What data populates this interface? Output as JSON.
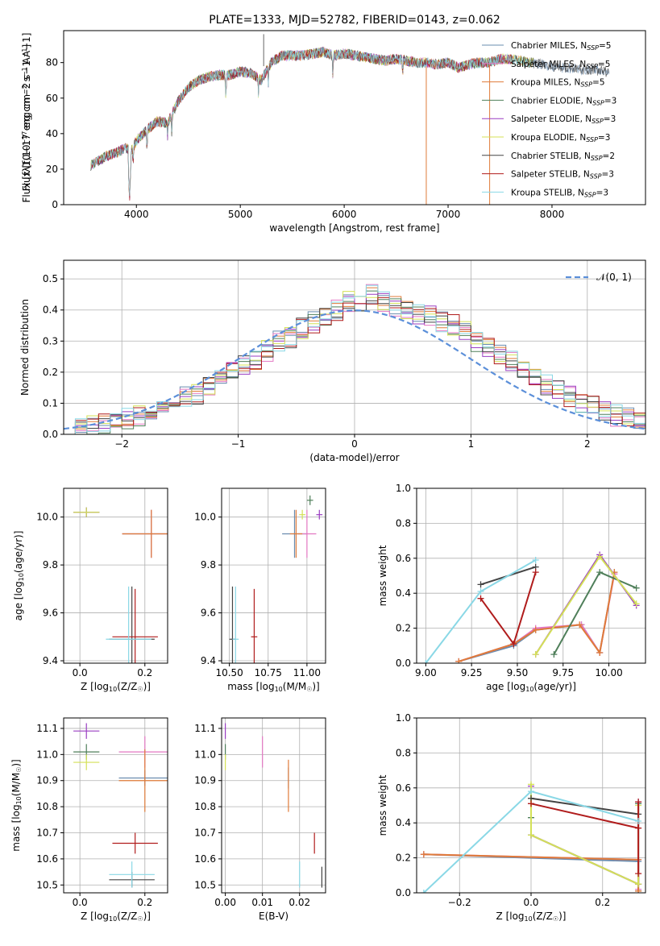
{
  "title": "PLATE=1333, MJD=52782, FIBERID=0143, z=0.062",
  "colors": [
    "#6a8caf",
    "#e377c2",
    "#e07b39",
    "#4f7f5a",
    "#9a3ec2",
    "#d4e157",
    "#444444",
    "#b01c1c",
    "#8ad8e6"
  ],
  "legend": [
    {
      "pre": "Chabrier MILES, N",
      "sub": "SSP",
      "post": "=5"
    },
    {
      "pre": "Salpeter MILES, N",
      "sub": "SSP",
      "post": "=5"
    },
    {
      "pre": "Kroupa MILES, N",
      "sub": "SSP",
      "post": "=5"
    },
    {
      "pre": "Chabrier ELODIE, N",
      "sub": "SSP",
      "post": "=3"
    },
    {
      "pre": "Salpeter ELODIE, N",
      "sub": "SSP",
      "post": "=3"
    },
    {
      "pre": "Kroupa ELODIE, N",
      "sub": "SSP",
      "post": "=3"
    },
    {
      "pre": "Chabrier STELIB, N",
      "sub": "SSP",
      "post": "=2"
    },
    {
      "pre": "Salpeter STELIB, N",
      "sub": "SSP",
      "post": "=3"
    },
    {
      "pre": "Kroupa STELIB, N",
      "sub": "SSP",
      "post": "=3"
    }
  ],
  "chart_data": [
    {
      "id": "spectrum",
      "type": "line",
      "xlabel": "wavelength [Angstrom, rest frame]",
      "ylabel_parts": [
        "Flux [f",
        "λ",
        "10",
        "−17",
        " erg cm",
        "−2",
        " s",
        "−1",
        " A",
        "−1",
        "]"
      ],
      "xlim": [
        3300,
        8900
      ],
      "ylim": [
        0,
        98
      ],
      "xticks": [
        4000,
        5000,
        6000,
        7000,
        8000
      ],
      "yticks": [
        0,
        20,
        40,
        60,
        80
      ],
      "continuum": [
        [
          3560,
          22
        ],
        [
          3700,
          27
        ],
        [
          3800,
          29
        ],
        [
          3900,
          32
        ],
        [
          3950,
          30
        ],
        [
          4000,
          36
        ],
        [
          4100,
          42
        ],
        [
          4200,
          47
        ],
        [
          4300,
          46
        ],
        [
          4400,
          58
        ],
        [
          4500,
          66
        ],
        [
          4600,
          70
        ],
        [
          4700,
          72
        ],
        [
          4800,
          73
        ],
        [
          4900,
          73
        ],
        [
          5000,
          75
        ],
        [
          5100,
          74
        ],
        [
          5200,
          70
        ],
        [
          5300,
          80
        ],
        [
          5400,
          84
        ],
        [
          5500,
          84
        ],
        [
          5600,
          84
        ],
        [
          5700,
          85
        ],
        [
          5800,
          86
        ],
        [
          5900,
          84
        ],
        [
          6000,
          85
        ],
        [
          6100,
          84
        ],
        [
          6200,
          83
        ],
        [
          6300,
          82
        ],
        [
          6400,
          81
        ],
        [
          6500,
          82
        ],
        [
          6600,
          81
        ],
        [
          6700,
          80
        ],
        [
          6800,
          80
        ],
        [
          6900,
          79
        ],
        [
          7000,
          80
        ],
        [
          7100,
          77
        ],
        [
          7200,
          79
        ],
        [
          7300,
          80
        ],
        [
          7400,
          80
        ],
        [
          7500,
          82
        ],
        [
          7600,
          82
        ],
        [
          7700,
          81
        ],
        [
          7800,
          80
        ],
        [
          7900,
          79
        ],
        [
          8000,
          78
        ],
        [
          8100,
          77
        ],
        [
          8200,
          77
        ],
        [
          8300,
          76
        ],
        [
          8400,
          76
        ],
        [
          8500,
          75
        ],
        [
          8550,
          74
        ]
      ],
      "absorption": [
        [
          3934,
          0
        ],
        [
          3968,
          20
        ],
        [
          4102,
          28
        ],
        [
          4300,
          36
        ],
        [
          4340,
          38
        ],
        [
          4861,
          58
        ],
        [
          5175,
          60
        ],
        [
          5270,
          66
        ],
        [
          5890,
          70
        ],
        [
          6563,
          70
        ]
      ],
      "spikes": [
        [
          5225,
          96
        ],
        [
          6790,
          0
        ],
        [
          7400,
          0
        ]
      ],
      "model_x_max": 7420
    },
    {
      "id": "residuals",
      "type": "histogram",
      "xlabel": "(data-model)/error",
      "ylabel": "Normed distribution",
      "xlim": [
        -2.5,
        2.5
      ],
      "ylim": [
        0,
        0.56
      ],
      "xticks": [
        -2,
        -1,
        0,
        1,
        2
      ],
      "yticks": [
        0.0,
        0.1,
        0.2,
        0.3,
        0.4,
        0.5
      ],
      "bin_width": 0.1,
      "base_values": [
        0.03,
        0.04,
        0.03,
        0.035,
        0.04,
        0.05,
        0.06,
        0.07,
        0.09,
        0.1,
        0.12,
        0.13,
        0.16,
        0.17,
        0.2,
        0.22,
        0.24,
        0.27,
        0.3,
        0.31,
        0.34,
        0.36,
        0.38,
        0.4,
        0.43,
        0.42,
        0.45,
        0.43,
        0.41,
        0.4,
        0.39,
        0.38,
        0.36,
        0.35,
        0.33,
        0.3,
        0.28,
        0.26,
        0.24,
        0.21,
        0.19,
        0.16,
        0.14,
        0.12,
        0.1,
        0.09,
        0.08,
        0.06,
        0.05,
        0.04
      ],
      "gaussian_label": "𝒩(0, 1)"
    },
    {
      "id": "age_vs_z",
      "type": "errorbar",
      "xlabel_parts": [
        "Z [log",
        "10",
        "(Z/Z",
        "☉",
        ")]"
      ],
      "ylabel_parts": [
        "age  [log",
        "10",
        "(age/yr)]"
      ],
      "xlim": [
        -0.05,
        0.27
      ],
      "ylim": [
        9.39,
        10.12
      ],
      "xticks": [
        0.0,
        0.2
      ],
      "yticks": [
        9.4,
        9.6,
        9.8,
        10.0
      ],
      "points": [
        [
          0.22,
          9.93,
          0.09,
          0.1
        ],
        [
          0.22,
          9.93,
          0.09,
          0.1
        ],
        [
          0.22,
          9.93,
          0.09,
          0.1
        ],
        [
          0.02,
          10.02,
          0.04,
          0.02
        ],
        [
          0.02,
          10.02,
          0.04,
          0.02
        ],
        [
          0.02,
          10.02,
          0.04,
          0.02
        ],
        [
          0.16,
          9.49,
          0.07,
          0.22
        ],
        [
          0.17,
          9.5,
          0.07,
          0.2
        ],
        [
          0.15,
          9.49,
          0.07,
          0.22
        ]
      ]
    },
    {
      "id": "age_vs_mass",
      "type": "errorbar",
      "xlabel_parts": [
        "mass [log",
        "10",
        "(M/M",
        "☉",
        ")]"
      ],
      "ylabel_parts": [],
      "xlim": [
        10.45,
        11.12
      ],
      "ylim": [
        9.39,
        10.12
      ],
      "xticks": [
        10.5,
        10.75,
        11.0
      ],
      "yticks": [
        9.4,
        9.6,
        9.8,
        10.0
      ],
      "points": [
        [
          10.92,
          9.93,
          0.08,
          0.1
        ],
        [
          11.0,
          9.93,
          0.06,
          0.1
        ],
        [
          10.93,
          9.93,
          0.04,
          0.1
        ],
        [
          11.02,
          10.07,
          0.02,
          0.02
        ],
        [
          11.08,
          10.01,
          0.02,
          0.02
        ],
        [
          10.97,
          10.01,
          0.02,
          0.02
        ],
        [
          10.52,
          9.49,
          0.02,
          0.22
        ],
        [
          10.66,
          9.5,
          0.02,
          0.2
        ],
        [
          10.54,
          9.49,
          0.02,
          0.22
        ]
      ]
    },
    {
      "id": "weight_vs_age",
      "type": "line",
      "xlabel_parts": [
        "age  [log",
        "10",
        "(age/yr)]"
      ],
      "ylabel": "mass weight",
      "xlim": [
        8.95,
        10.2
      ],
      "ylim": [
        0,
        1.0
      ],
      "xticks": [
        9.0,
        9.25,
        9.5,
        9.75,
        10.0
      ],
      "yticks": [
        0.0,
        0.2,
        0.4,
        0.6,
        0.8,
        1.0
      ],
      "series": [
        [
          [
            9.18,
            0.01
          ],
          [
            9.48,
            0.1
          ],
          [
            9.6,
            0.19
          ],
          [
            9.85,
            0.22
          ],
          [
            9.95,
            0.06
          ],
          [
            10.03,
            0.52
          ]
        ],
        [
          [
            9.18,
            0.01
          ],
          [
            9.48,
            0.11
          ],
          [
            9.6,
            0.2
          ],
          [
            9.85,
            0.22
          ],
          [
            9.95,
            0.06
          ],
          [
            10.03,
            0.51
          ]
        ],
        [
          [
            9.18,
            0.01
          ],
          [
            9.48,
            0.11
          ],
          [
            9.6,
            0.19
          ],
          [
            9.84,
            0.22
          ],
          [
            9.95,
            0.06
          ],
          [
            10.03,
            0.52
          ]
        ],
        [
          [
            9.7,
            0.05
          ],
          [
            9.95,
            0.52
          ],
          [
            10.15,
            0.43
          ]
        ],
        [
          [
            9.6,
            0.05
          ],
          [
            9.95,
            0.62
          ],
          [
            10.15,
            0.33
          ]
        ],
        [
          [
            9.6,
            0.05
          ],
          [
            9.95,
            0.61
          ],
          [
            10.15,
            0.34
          ]
        ],
        [
          [
            9.3,
            0.45
          ],
          [
            9.6,
            0.55
          ]
        ],
        [
          [
            9.3,
            0.37
          ],
          [
            9.48,
            0.11
          ],
          [
            9.6,
            0.52
          ]
        ],
        [
          [
            9.0,
            0.0
          ],
          [
            9.3,
            0.41
          ],
          [
            9.6,
            0.59
          ]
        ]
      ]
    },
    {
      "id": "mass_vs_z",
      "type": "errorbar",
      "xlabel_parts": [
        "Z [log",
        "10",
        "(Z/Z",
        "☉",
        ")]"
      ],
      "ylabel_parts": [
        "mass [log",
        "10",
        "(M/M",
        "☉",
        ")]"
      ],
      "xlim": [
        -0.05,
        0.27
      ],
      "ylim": [
        10.47,
        11.14
      ],
      "xticks": [
        0.0,
        0.2
      ],
      "yticks": [
        10.5,
        10.6,
        10.7,
        10.8,
        10.9,
        11.0,
        11.1
      ],
      "points": [
        [
          0.2,
          10.91,
          0.08,
          0.03
        ],
        [
          0.2,
          11.01,
          0.08,
          0.06
        ],
        [
          0.2,
          10.9,
          0.08,
          0.12
        ],
        [
          0.02,
          11.01,
          0.04,
          0.03
        ],
        [
          0.02,
          11.09,
          0.04,
          0.03
        ],
        [
          0.02,
          10.97,
          0.04,
          0.03
        ],
        [
          0.16,
          10.52,
          0.07,
          0.03
        ],
        [
          0.17,
          10.66,
          0.07,
          0.04
        ],
        [
          0.16,
          10.54,
          0.07,
          0.05
        ]
      ]
    },
    {
      "id": "mass_vs_ebv",
      "type": "errorbar",
      "xlabel": "E(B-V)",
      "ylabel_parts": [],
      "xlim": [
        -0.001,
        0.027
      ],
      "ylim": [
        10.47,
        11.14
      ],
      "xticks": [
        0.0,
        0.01,
        0.02
      ],
      "yticks": [
        10.5,
        10.6,
        10.7,
        10.8,
        10.9,
        11.0,
        11.1
      ],
      "points": [
        [
          0.017,
          10.91,
          0,
          0.04
        ],
        [
          0.01,
          11.01,
          0,
          0.06
        ],
        [
          0.017,
          10.88,
          0,
          0.1
        ],
        [
          0.0,
          11.01,
          0,
          0.03
        ],
        [
          0.0,
          11.09,
          0,
          0.03
        ],
        [
          0.0,
          10.97,
          0,
          0.03
        ],
        [
          0.026,
          10.53,
          0,
          0.04
        ],
        [
          0.024,
          10.66,
          0,
          0.04
        ],
        [
          0.02,
          10.54,
          0,
          0.05
        ]
      ]
    },
    {
      "id": "weight_vs_z",
      "type": "line",
      "xlabel_parts": [
        "Z [log",
        "10",
        "(Z/Z",
        "☉",
        ")]"
      ],
      "ylabel": "mass weight",
      "xlim": [
        -0.32,
        0.32
      ],
      "ylim": [
        0,
        1.0
      ],
      "xticks": [
        -0.2,
        0.0,
        0.2
      ],
      "yticks": [
        0.0,
        0.2,
        0.4,
        0.6,
        0.8,
        1.0
      ],
      "series": [
        [
          [
            -0.3,
            0.22
          ],
          [
            0.3,
            0.18
          ],
          [
            0.3,
            0.01
          ]
        ],
        [
          [
            -0.3,
            0.22
          ],
          [
            0.3,
            0.19
          ],
          [
            0.3,
            0.02
          ]
        ],
        [
          [
            -0.3,
            0.22
          ],
          [
            0.3,
            0.19
          ],
          [
            0.3,
            0.01
          ]
        ],
        [
          [
            0.0,
            0.43
          ],
          [
            0.0,
            0.33
          ],
          [
            0.3,
            0.05
          ],
          [
            0.3,
            0.51
          ]
        ],
        [
          [
            0.0,
            0.61
          ],
          [
            0.0,
            0.33
          ],
          [
            0.3,
            0.05
          ],
          [
            0.3,
            0.52
          ]
        ],
        [
          [
            0.0,
            0.62
          ],
          [
            0.0,
            0.33
          ],
          [
            0.3,
            0.05
          ],
          [
            0.3,
            0.5
          ]
        ],
        [
          [
            0.0,
            0.54
          ],
          [
            0.3,
            0.45
          ]
        ],
        [
          [
            0.0,
            0.51
          ],
          [
            0.3,
            0.37
          ],
          [
            0.3,
            0.11
          ],
          [
            0.3,
            0.52
          ]
        ],
        [
          [
            -0.3,
            0.0
          ],
          [
            0.0,
            0.58
          ],
          [
            0.3,
            0.41
          ]
        ]
      ]
    }
  ]
}
